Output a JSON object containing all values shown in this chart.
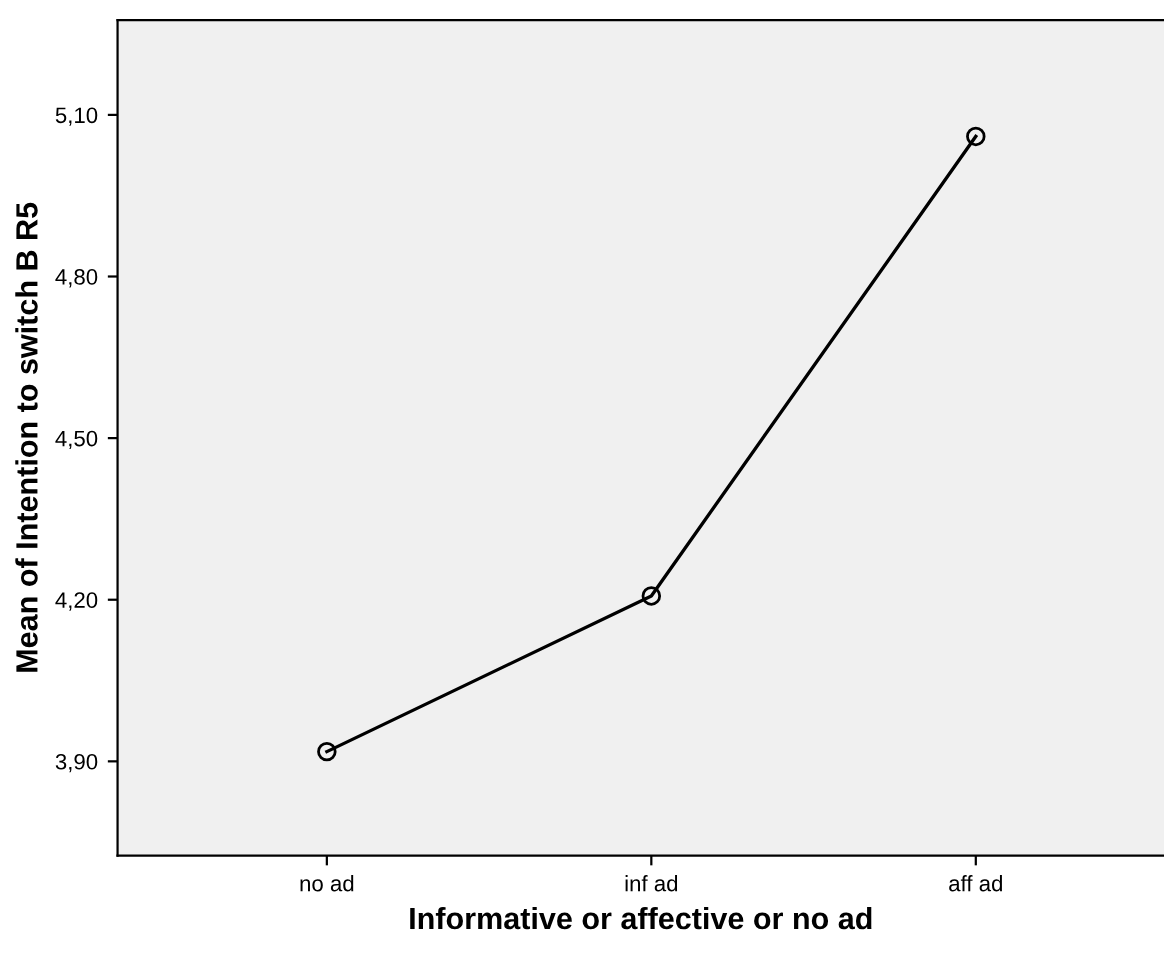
{
  "chart_data": {
    "type": "line",
    "xlabel": "Informative or affective or no ad",
    "ylabel": "Mean of Intention to switch B R5",
    "categories": [
      "no ad",
      "inf ad",
      "aff ad"
    ],
    "series": [
      {
        "color": "#000000",
        "values": [
          3.918,
          4.207,
          5.06
        ]
      }
    ],
    "ylim": [
      3.725,
      5.276
    ],
    "yticks": [
      {
        "value": 3.9,
        "label": "3,90"
      },
      {
        "value": 4.2,
        "label": "4,20"
      },
      {
        "value": 4.5,
        "label": "4,50"
      },
      {
        "value": 4.8,
        "label": "4,80"
      },
      {
        "value": 5.1,
        "label": "5,10"
      }
    ],
    "grid": false,
    "legend": false,
    "marker": "circle",
    "line_style": "solid"
  }
}
